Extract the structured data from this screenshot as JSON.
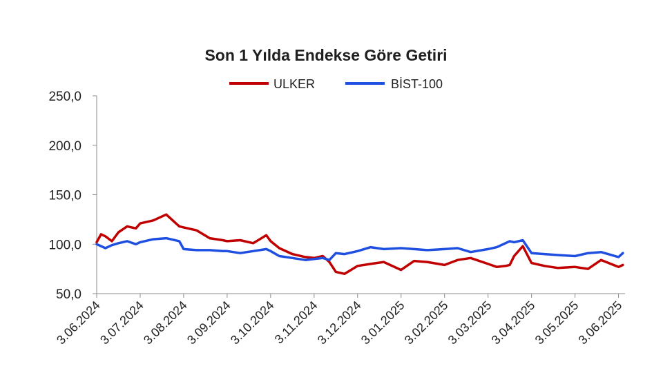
{
  "chart_data": {
    "type": "line",
    "title": "Son 1 Yılda Endekse Göre Getiri",
    "xlabel": "",
    "ylabel": "",
    "ylim": [
      50,
      250
    ],
    "yticks": [
      50,
      100,
      150,
      200,
      250
    ],
    "ytick_labels": [
      "50,0",
      "100,0",
      "150,0",
      "200,0",
      "250,0"
    ],
    "xtick_labels": [
      "3.06.2024",
      "3.07.2024",
      "3.08.2024",
      "3.09.2024",
      "3.10.2024",
      "3.11.2024",
      "3.12.2024",
      "3.01.2025",
      "3.02.2025",
      "3.03.2025",
      "3.04.2025",
      "3.05.2025",
      "3.06.2025"
    ],
    "legend_position": "top-center",
    "grid": false,
    "x_month_index": [
      0,
      0.1,
      0.2,
      0.35,
      0.5,
      0.7,
      0.9,
      1.0,
      1.3,
      1.6,
      1.9,
      2.0,
      2.3,
      2.6,
      2.9,
      3.0,
      3.3,
      3.6,
      3.9,
      4.0,
      4.2,
      4.5,
      4.8,
      5.0,
      5.2,
      5.35,
      5.5,
      5.7,
      6.0,
      6.3,
      6.6,
      7.0,
      7.3,
      7.6,
      8.0,
      8.3,
      8.6,
      9.0,
      9.2,
      9.4,
      9.5,
      9.6,
      9.8,
      10.0,
      10.3,
      10.6,
      11.0,
      11.3,
      11.6,
      12.0,
      12.1
    ],
    "series": [
      {
        "name": "ULKER",
        "color": "#c00000",
        "values": [
          102,
          110,
          108,
          103,
          112,
          118,
          116,
          121,
          124,
          130,
          118,
          117,
          114,
          106,
          104,
          103,
          104,
          101,
          109,
          103,
          96,
          90,
          87,
          86,
          88,
          82,
          72,
          70,
          78,
          80,
          82,
          74,
          83,
          82,
          79,
          84,
          86,
          80,
          77,
          78,
          79,
          88,
          98,
          81,
          78,
          76,
          77,
          75,
          84,
          77,
          79
        ]
      },
      {
        "name": "BİST-100",
        "color": "#1f4fe0",
        "values": [
          100,
          98,
          96,
          99,
          101,
          103,
          100,
          102,
          105,
          106,
          103,
          95,
          94,
          94,
          93,
          93,
          91,
          93,
          95,
          93,
          88,
          86,
          84,
          85,
          86,
          84,
          91,
          90,
          93,
          97,
          95,
          96,
          95,
          94,
          95,
          96,
          92,
          95,
          97,
          101,
          103,
          102,
          104,
          91,
          90,
          89,
          88,
          91,
          92,
          87,
          91
        ]
      }
    ]
  }
}
